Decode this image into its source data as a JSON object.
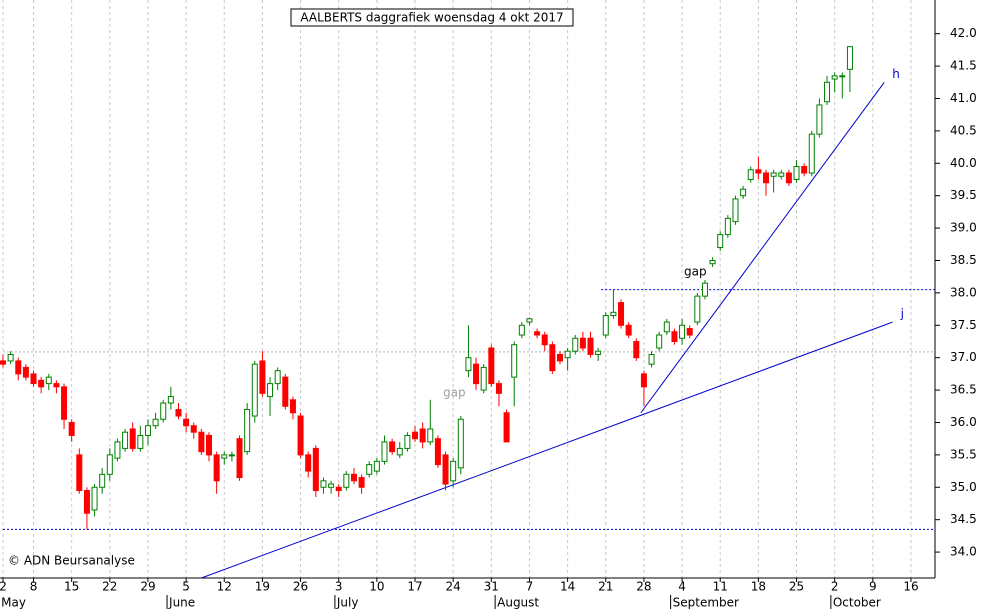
{
  "chart_data": {
    "type": "candlestick",
    "title": "AALBERTS daggrafiek woensdag 4 okt 2017",
    "categories": [
      "2",
      null,
      null,
      null,
      "8",
      null,
      null,
      null,
      null,
      "15",
      null,
      null,
      null,
      null,
      "22",
      null,
      null,
      null,
      null,
      "29",
      null,
      null,
      null,
      null,
      "5",
      null,
      null,
      null,
      null,
      "12",
      null,
      null,
      null,
      null,
      "19",
      null,
      null,
      null,
      null,
      "26",
      null,
      null,
      null,
      null,
      "3",
      null,
      null,
      null,
      null,
      "10",
      null,
      null,
      null,
      null,
      "17",
      null,
      null,
      null,
      null,
      "24",
      null,
      null,
      null,
      null,
      "31",
      null,
      null,
      null,
      null,
      "7",
      null,
      null,
      null,
      null,
      "14",
      null,
      null,
      null,
      null,
      "21",
      null,
      null,
      null,
      null,
      "28",
      null,
      null,
      null,
      null,
      "4",
      null,
      null,
      null,
      null,
      "11",
      null,
      null,
      null,
      null,
      "18",
      null,
      null,
      null,
      null,
      "25",
      null,
      null,
      null,
      null,
      "2",
      null,
      null,
      null,
      null,
      "9",
      null,
      null,
      null,
      null,
      "16",
      null,
      null,
      null
    ],
    "months": [
      {
        "label": "May",
        "index": 0
      },
      {
        "label": "June",
        "index": 22
      },
      {
        "label": "July",
        "index": 44
      },
      {
        "label": "August",
        "index": 65
      },
      {
        "label": "September",
        "index": 88
      },
      {
        "label": "October",
        "index": 109
      }
    ],
    "open": [
      36.95,
      36.95,
      36.95,
      36.85,
      36.75,
      36.65,
      36.6,
      36.6,
      36.55,
      36.0,
      35.5,
      34.95,
      34.65,
      35.0,
      35.2,
      35.45,
      35.6,
      35.9,
      35.6,
      35.8,
      35.95,
      36.05,
      36.3,
      36.2,
      36.05,
      35.95,
      35.85,
      35.8,
      35.5,
      35.45,
      35.5,
      35.75,
      35.55,
      36.1,
      36.95,
      36.4,
      36.6,
      36.7,
      36.35,
      36.1,
      35.5,
      35.6,
      35.0,
      35.0,
      35.0,
      35.0,
      35.2,
      35.15,
      35.2,
      35.25,
      35.4,
      35.7,
      35.5,
      35.6,
      35.85,
      35.9,
      35.7,
      35.75,
      35.5,
      35.1,
      35.3,
      36.8,
      36.9,
      36.5,
      37.15,
      36.6,
      36.15,
      36.7,
      37.35,
      37.55,
      37.4,
      37.35,
      37.2,
      37.05,
      37.0,
      37.1,
      37.3,
      37.3,
      37.05,
      37.35,
      37.65,
      37.85,
      37.5,
      37.25,
      36.75,
      36.9,
      37.15,
      37.4,
      37.4,
      37.3,
      37.45,
      37.55,
      37.95,
      38.45,
      38.7,
      38.9,
      39.1,
      39.5,
      39.75,
      39.9,
      39.85,
      39.8,
      39.8,
      39.85,
      39.75,
      39.95,
      39.85,
      40.45,
      40.95,
      41.3,
      41.35,
      41.45,
      null,
      null,
      null,
      null,
      null,
      null,
      null,
      null,
      null,
      null,
      null
    ],
    "high": [
      37.05,
      37.1,
      37.0,
      36.9,
      36.8,
      36.7,
      36.75,
      36.65,
      36.6,
      36.05,
      35.6,
      35.0,
      35.05,
      35.3,
      35.6,
      35.75,
      35.9,
      36.0,
      35.95,
      36.05,
      36.15,
      36.35,
      36.55,
      36.3,
      36.15,
      36.0,
      35.9,
      35.85,
      35.55,
      35.55,
      35.55,
      35.8,
      36.3,
      36.95,
      37.1,
      36.7,
      36.85,
      36.75,
      36.4,
      36.15,
      35.55,
      35.65,
      35.15,
      35.1,
      35.05,
      35.25,
      35.3,
      35.2,
      35.4,
      35.45,
      35.8,
      35.75,
      35.7,
      35.85,
      35.95,
      36.0,
      36.35,
      35.8,
      35.55,
      35.45,
      36.1,
      37.5,
      37.0,
      36.9,
      37.2,
      36.65,
      36.2,
      37.25,
      37.55,
      37.62,
      37.45,
      37.4,
      37.25,
      37.1,
      37.15,
      37.35,
      37.4,
      37.4,
      37.15,
      37.7,
      38.05,
      37.9,
      37.55,
      37.3,
      36.8,
      37.1,
      37.4,
      37.6,
      37.45,
      37.6,
      37.5,
      38.0,
      38.2,
      38.55,
      38.95,
      39.2,
      39.5,
      39.65,
      39.95,
      40.1,
      39.9,
      39.9,
      39.9,
      39.9,
      40.05,
      40.0,
      40.5,
      41.0,
      41.35,
      41.4,
      41.4,
      41.8,
      null,
      null,
      null,
      null,
      null,
      null,
      null,
      null,
      null,
      null,
      null
    ],
    "low": [
      36.85,
      36.9,
      36.65,
      36.65,
      36.55,
      36.45,
      36.5,
      36.45,
      35.9,
      35.7,
      34.9,
      34.35,
      34.55,
      34.9,
      35.1,
      35.4,
      35.55,
      35.55,
      35.55,
      35.65,
      35.9,
      36.0,
      36.2,
      36.05,
      35.85,
      35.75,
      35.5,
      35.4,
      34.9,
      35.35,
      35.4,
      35.1,
      35.5,
      36.0,
      36.4,
      36.1,
      36.5,
      36.2,
      36.05,
      35.45,
      35.15,
      34.85,
      34.9,
      34.9,
      34.85,
      34.95,
      35.05,
      34.9,
      35.15,
      35.2,
      35.35,
      35.5,
      35.45,
      35.55,
      35.7,
      35.6,
      35.65,
      35.3,
      34.95,
      35.0,
      35.2,
      36.7,
      36.5,
      36.45,
      36.55,
      36.25,
      35.7,
      36.25,
      37.3,
      37.5,
      37.3,
      37.1,
      36.75,
      36.9,
      36.8,
      37.05,
      37.1,
      37.0,
      36.95,
      37.3,
      37.6,
      37.45,
      37.3,
      36.95,
      36.25,
      36.85,
      37.1,
      37.35,
      37.2,
      37.2,
      37.3,
      37.5,
      37.9,
      38.4,
      38.65,
      38.85,
      39.05,
      39.45,
      39.7,
      39.75,
      39.5,
      39.55,
      39.75,
      39.65,
      39.7,
      39.8,
      39.8,
      40.4,
      40.9,
      41.1,
      41.0,
      41.1,
      null,
      null,
      null,
      null,
      null,
      null,
      null,
      null,
      null,
      null,
      null
    ],
    "close": [
      36.9,
      37.05,
      36.75,
      36.7,
      36.6,
      36.55,
      36.7,
      36.55,
      36.05,
      35.8,
      34.95,
      34.6,
      35.0,
      35.2,
      35.5,
      35.7,
      35.85,
      35.6,
      35.8,
      35.95,
      36.05,
      36.3,
      36.4,
      36.1,
      35.95,
      35.85,
      35.55,
      35.5,
      35.1,
      35.5,
      35.5,
      35.15,
      36.2,
      36.9,
      36.45,
      36.6,
      36.8,
      36.25,
      36.15,
      35.5,
      35.25,
      34.95,
      35.1,
      35.05,
      34.95,
      35.2,
      35.1,
      35.0,
      35.35,
      35.4,
      35.7,
      35.55,
      35.6,
      35.8,
      35.75,
      35.7,
      35.9,
      35.35,
      35.05,
      35.4,
      36.05,
      37.0,
      36.6,
      36.85,
      36.6,
      36.45,
      35.7,
      37.2,
      37.5,
      37.6,
      37.35,
      37.2,
      36.8,
      36.95,
      37.1,
      37.3,
      37.15,
      37.05,
      37.1,
      37.65,
      37.7,
      37.5,
      37.35,
      37.0,
      36.55,
      37.05,
      37.35,
      37.55,
      37.25,
      37.5,
      37.35,
      37.95,
      38.15,
      38.5,
      38.9,
      39.15,
      39.45,
      39.6,
      39.9,
      39.85,
      39.7,
      39.85,
      39.85,
      39.7,
      39.95,
      39.85,
      40.45,
      40.9,
      41.25,
      41.35,
      41.35,
      41.8,
      null,
      null,
      null,
      null,
      null,
      null,
      null,
      null,
      null,
      null,
      null
    ],
    "up_color": "#008000",
    "down_color": "#ff0000",
    "ylim": [
      33.6,
      42.52
    ],
    "yticks": [
      {
        "value": 34,
        "label": "34.0"
      },
      {
        "value": 34.5,
        "label": "34.5"
      },
      {
        "value": 35,
        "label": "35.0"
      },
      {
        "value": 35.5,
        "label": "35.5"
      },
      {
        "value": 36,
        "label": "36.0"
      },
      {
        "value": 36.5,
        "label": "36.5"
      },
      {
        "value": 37,
        "label": "37.0"
      },
      {
        "value": 37.5,
        "label": "37.5"
      },
      {
        "value": 38,
        "label": "38.0"
      },
      {
        "value": 38.5,
        "label": "38.5"
      },
      {
        "value": 39,
        "label": "39.0"
      },
      {
        "value": 39.5,
        "label": "39.5"
      },
      {
        "value": 40,
        "label": "40.0"
      },
      {
        "value": 40.5,
        "label": "40.5"
      },
      {
        "value": 41,
        "label": "41.0"
      },
      {
        "value": 41.5,
        "label": "41.5"
      },
      {
        "value": 42,
        "label": "42.0"
      }
    ],
    "trendlines": [
      {
        "label": "h",
        "x": [
          83.6,
          115.5
        ],
        "y": [
          36.15,
          41.25
        ],
        "color": "#0000cc"
      },
      {
        "label": "j",
        "x": [
          26,
          116.6
        ],
        "y": [
          33.6,
          37.55
        ],
        "color": "#0000cc"
      }
    ],
    "levels": [
      {
        "value": 38.05,
        "from": 78.4,
        "color": "#0000cc"
      },
      {
        "value": 34.35,
        "from": 0,
        "color": "#0000cc"
      },
      {
        "value": 37.09,
        "from": 0,
        "color": "#b0b0b0"
      }
    ],
    "annotations": [
      "gap",
      "gap"
    ],
    "copyright": "© ADN Beursanalyse"
  }
}
